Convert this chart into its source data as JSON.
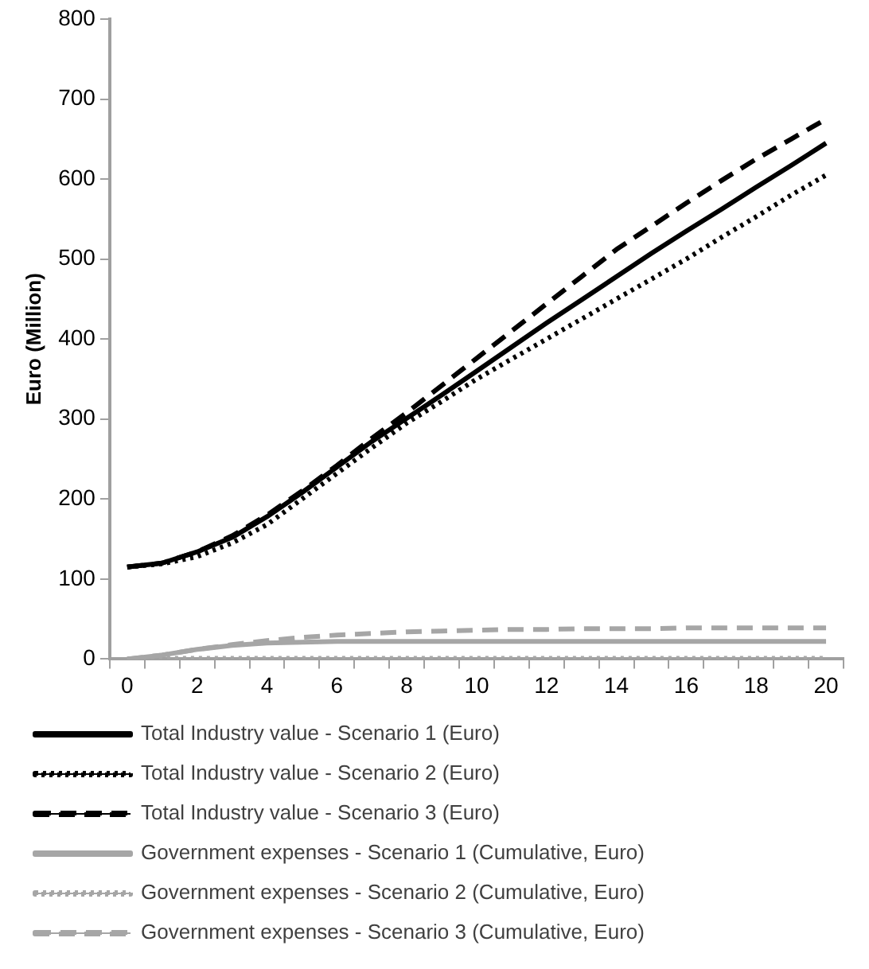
{
  "chart_data": {
    "type": "line",
    "ylabel": "Euro (Million)",
    "categories": [
      "0",
      null,
      "2",
      null,
      "4",
      null,
      "6",
      null,
      "8",
      null,
      "10",
      null,
      "12",
      null,
      "14",
      null,
      "16",
      null,
      "18",
      null,
      "20"
    ],
    "ylim": [
      0,
      800
    ],
    "yticks": [
      0,
      100,
      200,
      300,
      400,
      500,
      600,
      700,
      800
    ],
    "grid": false,
    "legend": "bottom",
    "marker": "none",
    "series": [
      {
        "name": "Total Industry value - Scenario 1 (Euro)",
        "color": "#000000",
        "line_style": "solid",
        "values": [
          115,
          120,
          134,
          152,
          178,
          208,
          240,
          272,
          301,
          330,
          360,
          390,
          420,
          449,
          478,
          507,
          535,
          562,
          590,
          617,
          645
        ]
      },
      {
        "name": "Total Industry value - Scenario 2 (Euro)",
        "color": "#000000",
        "line_style": "dotted",
        "values": [
          115,
          119,
          128,
          145,
          168,
          200,
          232,
          264,
          295,
          322,
          350,
          375,
          400,
          425,
          450,
          475,
          500,
          527,
          553,
          580,
          605
        ]
      },
      {
        "name": "Total Industry value - Scenario 3 (Euro)",
        "color": "#000000",
        "line_style": "dashed",
        "values": [
          115,
          120,
          134,
          154,
          180,
          210,
          242,
          276,
          308,
          342,
          376,
          410,
          444,
          478,
          512,
          541,
          570,
          598,
          625,
          650,
          675
        ]
      },
      {
        "name": "Government expenses - Scenario 1 (Cumulative, Euro)",
        "color": "#a6a6a6",
        "line_style": "solid",
        "values": [
          0,
          5,
          12,
          17,
          20,
          21,
          22,
          22,
          22,
          22,
          22,
          22,
          22,
          22,
          22,
          22,
          22,
          22,
          22,
          22,
          22
        ]
      },
      {
        "name": "Government expenses - Scenario 2 (Cumulative, Euro)",
        "color": "#a6a6a6",
        "line_style": "dotted",
        "values": [
          0,
          1,
          1,
          1,
          1,
          1,
          1,
          1,
          1,
          1,
          1,
          1,
          1,
          1,
          1,
          1,
          1,
          1,
          1,
          1,
          1
        ]
      },
      {
        "name": "Government expenses - Scenario 3 (Cumulative, Euro)",
        "color": "#a6a6a6",
        "line_style": "dashed",
        "values": [
          0,
          5,
          12,
          18,
          23,
          27,
          30,
          32,
          34,
          35,
          36,
          37,
          37,
          38,
          38,
          38,
          39,
          39,
          39,
          39,
          39
        ]
      }
    ]
  }
}
